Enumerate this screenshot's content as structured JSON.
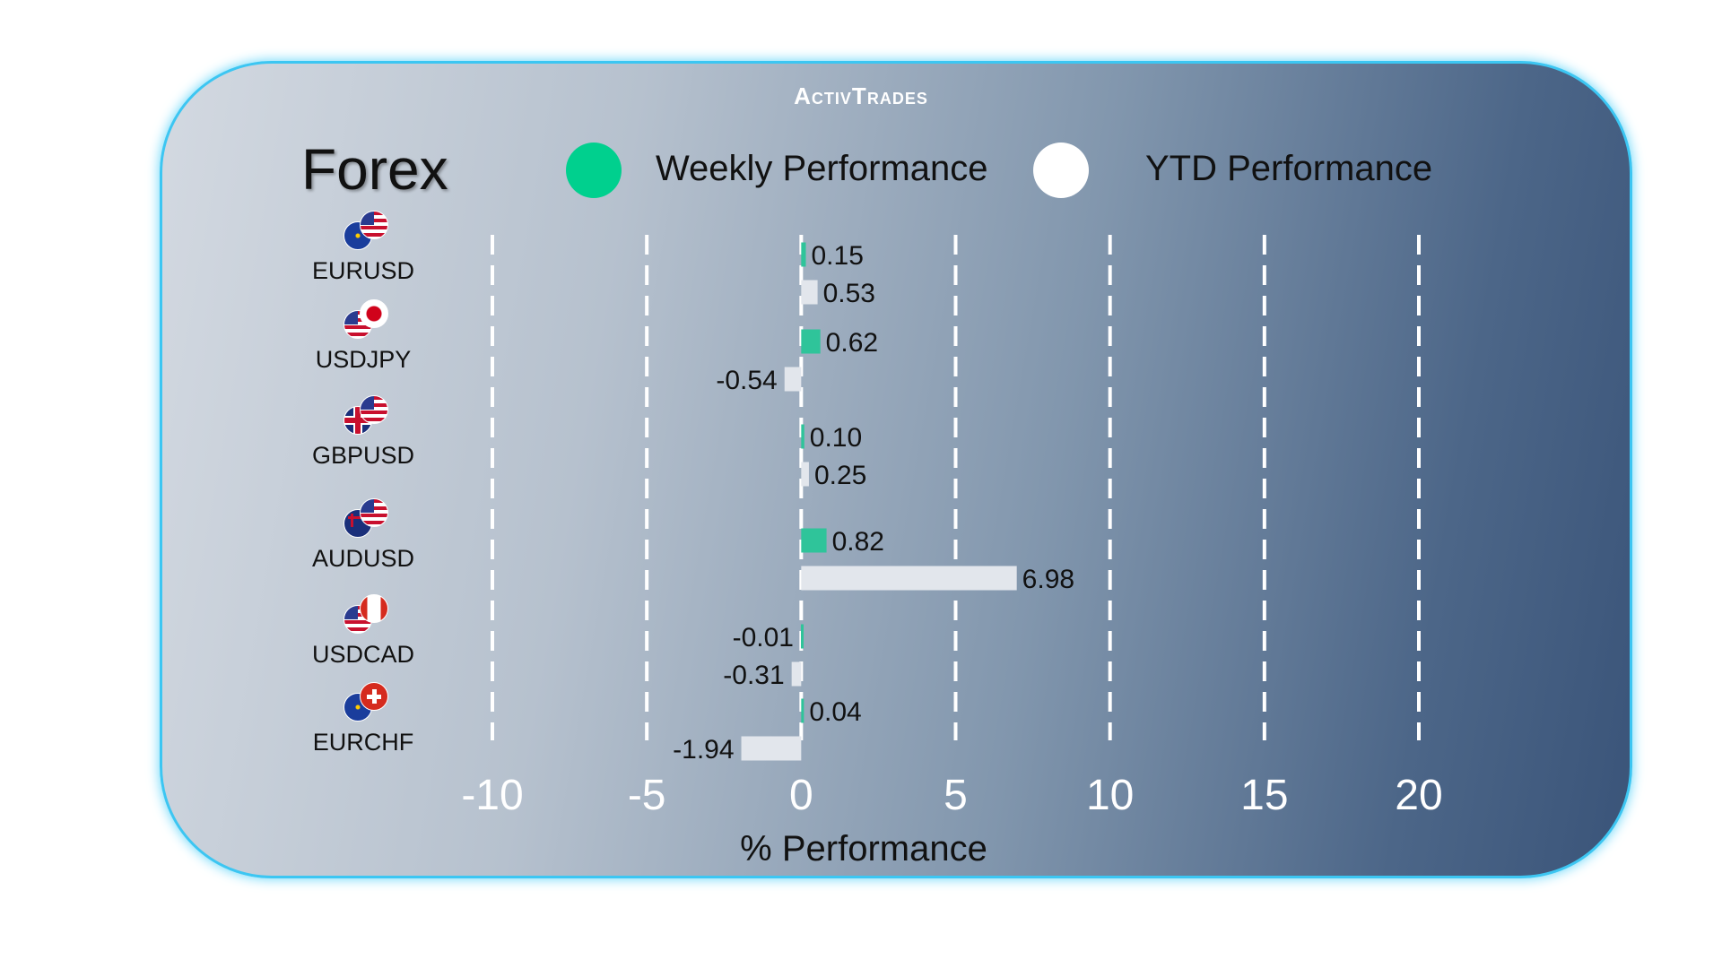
{
  "brand": "ActivTrades",
  "chart_data": {
    "type": "bar",
    "orientation": "horizontal",
    "title": "Forex",
    "xlabel": "% Performance",
    "xlim": [
      -10,
      20
    ],
    "xticks": [
      "-10",
      "-5",
      "0",
      "5",
      "10",
      "15",
      "20"
    ],
    "grid": true,
    "legend": {
      "placement": "top",
      "entries": [
        "Weekly Performance",
        "YTD Performance"
      ]
    },
    "categories": [
      "EURUSD",
      "USDJPY",
      "GBPUSD",
      "AUDUSD",
      "USDCAD",
      "EURCHF"
    ],
    "series": [
      {
        "name": "Weekly Performance",
        "color": "#2fc49a",
        "values": [
          0.15,
          0.62,
          0.1,
          0.82,
          -0.01,
          0.04
        ],
        "labels": [
          "0.15",
          "0.62",
          "0.10",
          "0.82",
          "-0.01",
          "0.04"
        ]
      },
      {
        "name": "YTD Performance",
        "color": "#e2e6ec",
        "values": [
          0.53,
          -0.54,
          0.25,
          6.98,
          -0.31,
          -1.94
        ],
        "labels": [
          "0.53",
          "-0.54",
          "0.25",
          "6.98",
          "-0.31",
          "-1.94"
        ]
      }
    ]
  },
  "legend_colors": {
    "weekly": "#00d08e",
    "ytd": "#ffffff"
  },
  "flags": [
    {
      "pair": "EURUSD",
      "a": "eu-flag",
      "b": "us-flag"
    },
    {
      "pair": "USDJPY",
      "a": "us-flag",
      "b": "jp-flag"
    },
    {
      "pair": "GBPUSD",
      "a": "gb-flag",
      "b": "us-flag"
    },
    {
      "pair": "AUDUSD",
      "a": "au-flag",
      "b": "us-flag"
    },
    {
      "pair": "USDCAD",
      "a": "us-flag",
      "b": "ca-flag"
    },
    {
      "pair": "EURCHF",
      "a": "eu-flag",
      "b": "ch-flag"
    }
  ]
}
